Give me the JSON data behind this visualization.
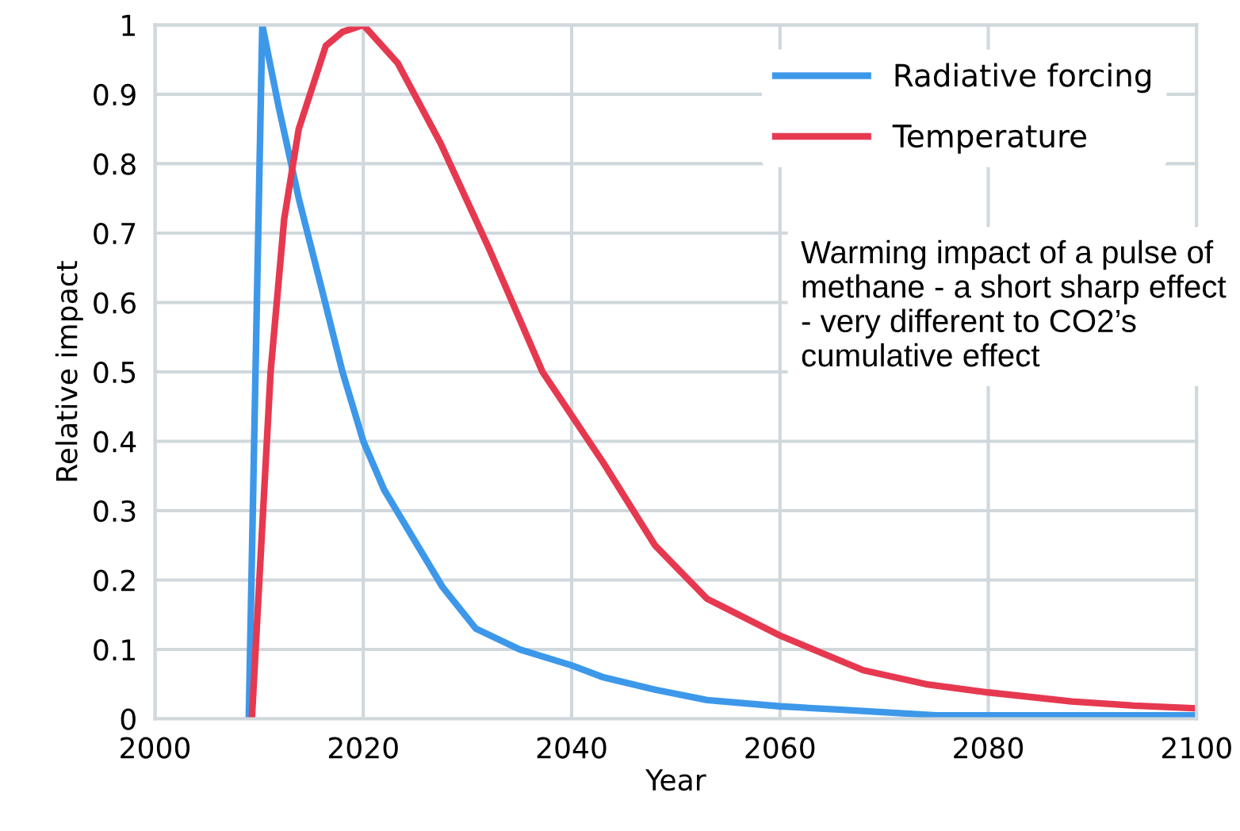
{
  "chart_data": {
    "type": "line",
    "xlabel": "Year",
    "ylabel": "Relative impact",
    "xlim": [
      2000,
      2100
    ],
    "xticks": [
      2000,
      2020,
      2040,
      2060,
      2080,
      2100
    ],
    "ylim": [
      0,
      1
    ],
    "yticks": [
      0,
      0.1,
      0.2,
      0.3,
      0.4,
      0.5,
      0.6,
      0.7,
      0.8,
      0.9,
      1
    ],
    "grid": true,
    "legend": "top right",
    "marker": "none",
    "line_style": "solid",
    "annotations": [
      "Warming impact of a pulse of methane - a short sharp effect - very different to CO2’s cumulative effect"
    ],
    "series": [
      {
        "name": "Radiative forcing",
        "color": "#3d98ea",
        "x": [
          2009,
          2010.3,
          2011.9,
          2013.8,
          2016,
          2018,
          2020,
          2022,
          2024.4,
          2027.6,
          2030.8,
          2035,
          2040,
          2043,
          2048,
          2053,
          2060,
          2066,
          2075,
          2085,
          2100
        ],
        "values": [
          0,
          1,
          0.88,
          0.75,
          0.62,
          0.5,
          0.4,
          0.33,
          0.27,
          0.19,
          0.13,
          0.1,
          0.077,
          0.06,
          0.042,
          0.027,
          0.018,
          0.013,
          0.005,
          0.005,
          0.005
        ]
      },
      {
        "name": "Temperature",
        "color": "#e63950",
        "x": [
          2009.3,
          2011.1,
          2012.4,
          2013.8,
          2016.4,
          2018,
          2020,
          2023.3,
          2027.4,
          2032,
          2037.2,
          2043,
          2048,
          2053,
          2060,
          2068,
          2074,
          2080,
          2088,
          2094,
          2100
        ],
        "values": [
          0,
          0.5,
          0.72,
          0.85,
          0.97,
          0.99,
          1,
          0.945,
          0.83,
          0.68,
          0.5,
          0.37,
          0.25,
          0.173,
          0.12,
          0.07,
          0.05,
          0.038,
          0.025,
          0.019,
          0.015
        ]
      }
    ]
  }
}
